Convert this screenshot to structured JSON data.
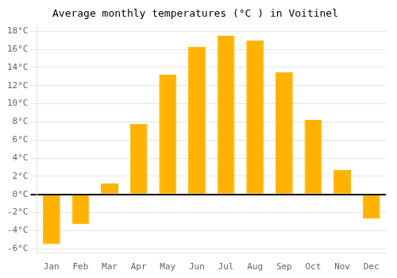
{
  "chart_data": {
    "type": "bar",
    "title": "Average monthly temperatures (°C ) in Voitinel",
    "categories": [
      "Jan",
      "Feb",
      "Mar",
      "Apr",
      "May",
      "Jun",
      "Jul",
      "Aug",
      "Sep",
      "Oct",
      "Nov",
      "Dec"
    ],
    "values": [
      -5.5,
      -3.3,
      1.2,
      7.8,
      13.2,
      16.3,
      17.5,
      17.0,
      13.5,
      8.2,
      2.7,
      -2.7
    ],
    "color": "#FFB300",
    "ylim": [
      -6.5,
      18.5
    ],
    "yticks": [
      {
        "value": -6,
        "label": "-6°C"
      },
      {
        "value": -4,
        "label": "-4°C"
      },
      {
        "value": -2,
        "label": "-2°C"
      },
      {
        "value": 0,
        "label": "0°C"
      },
      {
        "value": 2,
        "label": "2°C"
      },
      {
        "value": 4,
        "label": "4°C"
      },
      {
        "value": 6,
        "label": "6°C"
      },
      {
        "value": 8,
        "label": "8°C"
      },
      {
        "value": 10,
        "label": "10°C"
      },
      {
        "value": 12,
        "label": "12°C"
      },
      {
        "value": 14,
        "label": "14°C"
      },
      {
        "value": 16,
        "label": "16°C"
      },
      {
        "value": 18,
        "label": "18°C"
      }
    ],
    "grid": true
  }
}
